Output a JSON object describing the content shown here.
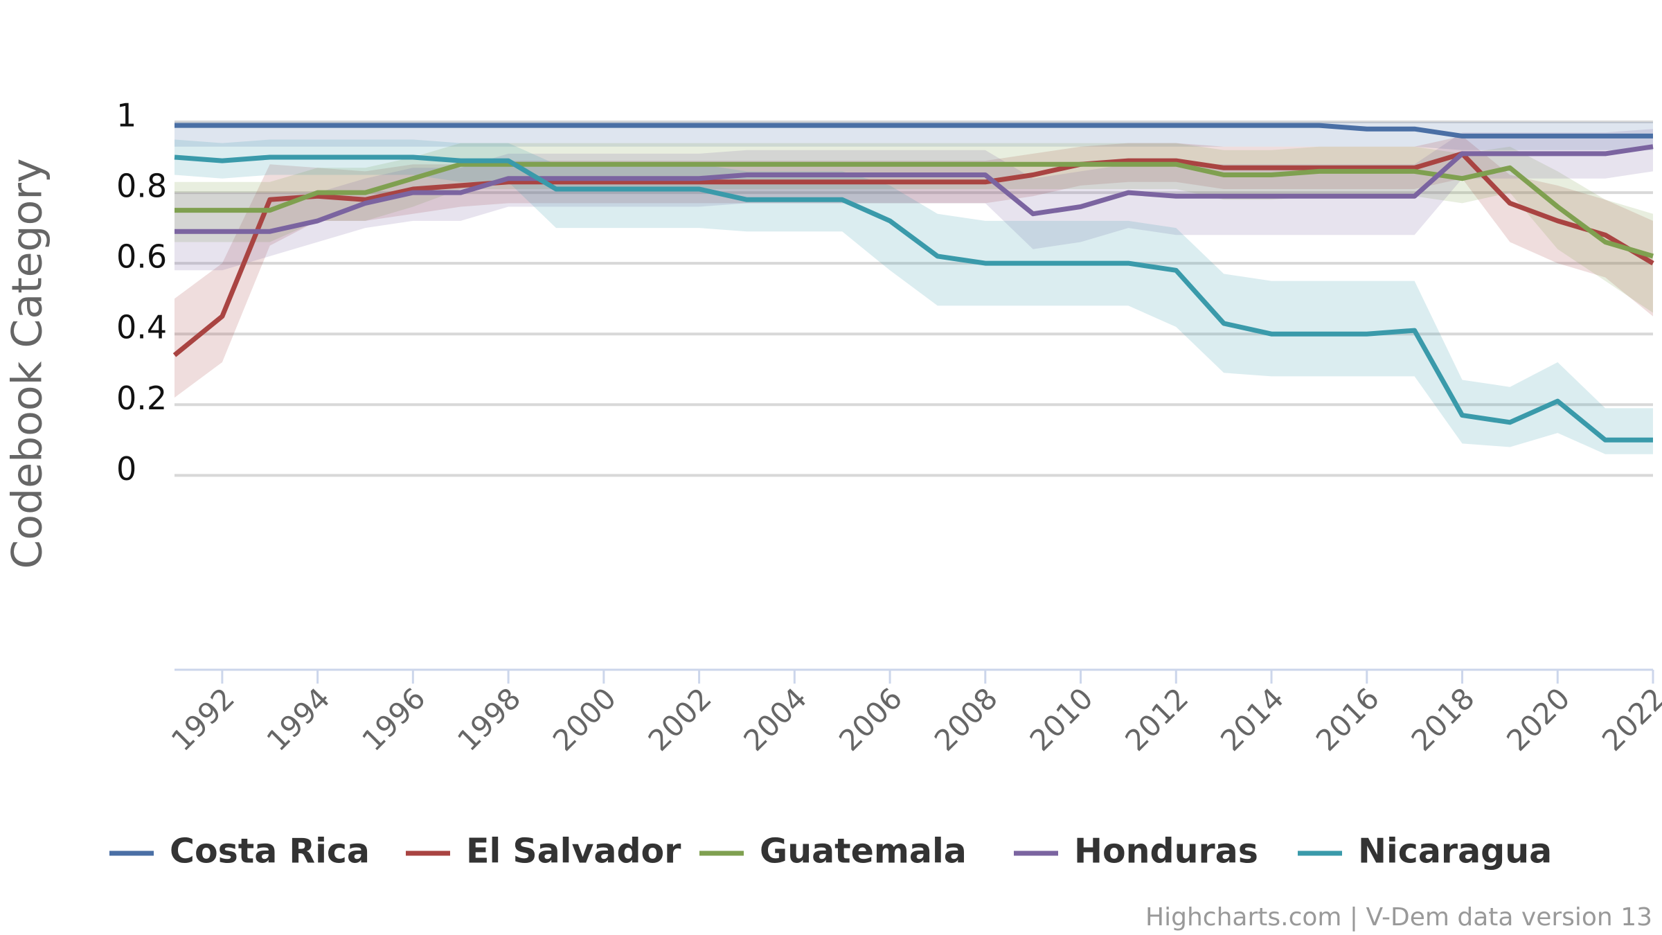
{
  "chart_data": {
    "type": "line",
    "y_axis_title": "Codebook Category",
    "credits": "Highcharts.com | V-Dem data version 13",
    "x": [
      1991,
      1992,
      1993,
      1994,
      1995,
      1996,
      1997,
      1998,
      1999,
      2000,
      2001,
      2002,
      2003,
      2004,
      2005,
      2006,
      2007,
      2008,
      2009,
      2010,
      2011,
      2012,
      2013,
      2014,
      2015,
      2016,
      2017,
      2018,
      2019,
      2020,
      2021,
      2022
    ],
    "xlim": [
      1991,
      2022
    ],
    "xticks": [
      1992,
      1994,
      1996,
      1998,
      2000,
      2002,
      2004,
      2006,
      2008,
      2010,
      2012,
      2014,
      2016,
      2018,
      2020,
      2022
    ],
    "ylim": [
      -0.55,
      1
    ],
    "yticks": [
      0,
      0.2,
      0.4,
      0.6,
      0.8,
      1
    ],
    "grid": true,
    "series": [
      {
        "name": "Costa Rica",
        "color": "#4a6fa5",
        "values": [
          0.99,
          0.99,
          0.99,
          0.99,
          0.99,
          0.99,
          0.99,
          0.99,
          0.99,
          0.99,
          0.99,
          0.99,
          0.99,
          0.99,
          0.99,
          0.99,
          0.99,
          0.99,
          0.99,
          0.99,
          0.99,
          0.99,
          0.99,
          0.99,
          0.99,
          0.98,
          0.98,
          0.96,
          0.96,
          0.96,
          0.96,
          0.96
        ],
        "low": [
          0.93,
          0.93,
          0.93,
          0.93,
          0.93,
          0.93,
          0.93,
          0.93,
          0.93,
          0.93,
          0.93,
          0.93,
          0.93,
          0.93,
          0.93,
          0.93,
          0.93,
          0.93,
          0.93,
          0.93,
          0.93,
          0.93,
          0.93,
          0.93,
          0.93,
          0.93,
          0.93,
          0.92,
          0.92,
          0.92,
          0.92,
          0.92
        ],
        "high": [
          1,
          1,
          1,
          1,
          1,
          1,
          1,
          1,
          1,
          1,
          1,
          1,
          1,
          1,
          1,
          1,
          1,
          1,
          1,
          1,
          1,
          1,
          1,
          1,
          1,
          1,
          1,
          1,
          1,
          1,
          1,
          1
        ]
      },
      {
        "name": "El Salvador",
        "color": "#a94442",
        "values": [
          0.34,
          0.45,
          0.78,
          0.79,
          0.78,
          0.81,
          0.82,
          0.83,
          0.83,
          0.83,
          0.83,
          0.83,
          0.83,
          0.83,
          0.83,
          0.83,
          0.83,
          0.83,
          0.85,
          0.88,
          0.89,
          0.89,
          0.87,
          0.87,
          0.87,
          0.87,
          0.87,
          0.91,
          0.77,
          0.72,
          0.68,
          0.6
        ],
        "low": [
          0.22,
          0.32,
          0.65,
          0.72,
          0.72,
          0.74,
          0.76,
          0.77,
          0.77,
          0.77,
          0.77,
          0.77,
          0.77,
          0.77,
          0.77,
          0.77,
          0.77,
          0.77,
          0.79,
          0.82,
          0.83,
          0.83,
          0.81,
          0.81,
          0.81,
          0.81,
          0.81,
          0.84,
          0.66,
          0.6,
          0.56,
          0.45
        ],
        "high": [
          0.5,
          0.6,
          0.88,
          0.87,
          0.86,
          0.88,
          0.88,
          0.89,
          0.89,
          0.89,
          0.89,
          0.89,
          0.89,
          0.89,
          0.89,
          0.89,
          0.89,
          0.89,
          0.91,
          0.93,
          0.94,
          0.94,
          0.93,
          0.93,
          0.93,
          0.93,
          0.93,
          0.96,
          0.85,
          0.82,
          0.78,
          0.72
        ]
      },
      {
        "name": "Guatemala",
        "color": "#7fa050",
        "values": [
          0.75,
          0.75,
          0.75,
          0.8,
          0.8,
          0.84,
          0.88,
          0.88,
          0.88,
          0.88,
          0.88,
          0.88,
          0.88,
          0.88,
          0.88,
          0.88,
          0.88,
          0.88,
          0.88,
          0.88,
          0.88,
          0.88,
          0.85,
          0.85,
          0.86,
          0.86,
          0.86,
          0.84,
          0.87,
          0.76,
          0.66,
          0.62
        ],
        "low": [
          0.66,
          0.66,
          0.66,
          0.72,
          0.72,
          0.76,
          0.81,
          0.81,
          0.81,
          0.81,
          0.81,
          0.81,
          0.81,
          0.81,
          0.81,
          0.81,
          0.81,
          0.81,
          0.81,
          0.81,
          0.81,
          0.81,
          0.78,
          0.78,
          0.79,
          0.79,
          0.79,
          0.77,
          0.8,
          0.64,
          0.55,
          0.46
        ],
        "high": [
          0.83,
          0.83,
          0.83,
          0.87,
          0.87,
          0.9,
          0.94,
          0.94,
          0.94,
          0.94,
          0.94,
          0.94,
          0.94,
          0.94,
          0.94,
          0.94,
          0.94,
          0.94,
          0.94,
          0.94,
          0.94,
          0.94,
          0.92,
          0.92,
          0.93,
          0.93,
          0.93,
          0.91,
          0.93,
          0.86,
          0.78,
          0.74
        ]
      },
      {
        "name": "Honduras",
        "color": "#7b64a0",
        "values": [
          0.69,
          0.69,
          0.69,
          0.72,
          0.77,
          0.8,
          0.8,
          0.84,
          0.84,
          0.84,
          0.84,
          0.84,
          0.85,
          0.85,
          0.85,
          0.85,
          0.85,
          0.85,
          0.74,
          0.76,
          0.8,
          0.79,
          0.79,
          0.79,
          0.79,
          0.79,
          0.79,
          0.91,
          0.91,
          0.91,
          0.91,
          0.93
        ],
        "low": [
          0.58,
          0.58,
          0.62,
          0.66,
          0.7,
          0.72,
          0.72,
          0.76,
          0.76,
          0.76,
          0.76,
          0.76,
          0.77,
          0.77,
          0.77,
          0.77,
          0.77,
          0.77,
          0.64,
          0.66,
          0.7,
          0.68,
          0.68,
          0.68,
          0.68,
          0.68,
          0.68,
          0.84,
          0.84,
          0.84,
          0.84,
          0.86
        ],
        "high": [
          0.8,
          0.8,
          0.8,
          0.8,
          0.84,
          0.87,
          0.87,
          0.91,
          0.91,
          0.91,
          0.91,
          0.91,
          0.92,
          0.92,
          0.92,
          0.92,
          0.92,
          0.92,
          0.84,
          0.86,
          0.88,
          0.88,
          0.88,
          0.88,
          0.88,
          0.88,
          0.88,
          0.97,
          0.97,
          0.97,
          0.97,
          0.98
        ]
      },
      {
        "name": "Nicaragua",
        "color": "#3a9aaa",
        "values": [
          0.9,
          0.89,
          0.9,
          0.9,
          0.9,
          0.9,
          0.89,
          0.89,
          0.81,
          0.81,
          0.81,
          0.81,
          0.78,
          0.78,
          0.78,
          0.72,
          0.62,
          0.6,
          0.6,
          0.6,
          0.6,
          0.58,
          0.43,
          0.4,
          0.4,
          0.4,
          0.41,
          0.17,
          0.15,
          0.21,
          0.1,
          0.1
        ],
        "low": [
          0.85,
          0.84,
          0.85,
          0.85,
          0.85,
          0.85,
          0.83,
          0.83,
          0.7,
          0.7,
          0.7,
          0.7,
          0.69,
          0.69,
          0.69,
          0.58,
          0.48,
          0.48,
          0.48,
          0.48,
          0.48,
          0.42,
          0.29,
          0.28,
          0.28,
          0.28,
          0.28,
          0.09,
          0.08,
          0.12,
          0.06,
          0.06
        ],
        "high": [
          0.95,
          0.94,
          0.95,
          0.95,
          0.95,
          0.95,
          0.94,
          0.94,
          0.88,
          0.88,
          0.88,
          0.88,
          0.86,
          0.86,
          0.86,
          0.82,
          0.74,
          0.72,
          0.72,
          0.72,
          0.72,
          0.7,
          0.57,
          0.55,
          0.55,
          0.55,
          0.55,
          0.27,
          0.25,
          0.32,
          0.19,
          0.19
        ]
      }
    ]
  }
}
